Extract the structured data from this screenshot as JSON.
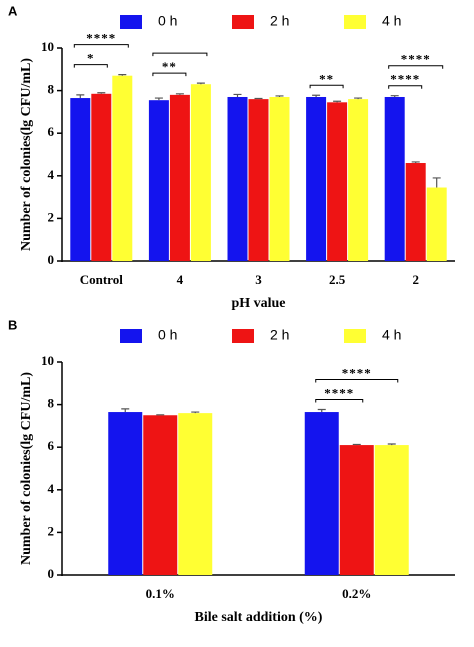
{
  "chart_data": [
    {
      "type": "bar",
      "panel_label": "A",
      "x_label": "pH value",
      "y_label": "Number of colonies(lg CFU/mL)",
      "categories": [
        "Control",
        "4",
        "3",
        "2.5",
        "2"
      ],
      "series": [
        {
          "name": "0 h",
          "color": "#1414ee",
          "values": [
            7.65,
            7.55,
            7.7,
            7.7,
            7.7
          ],
          "errors": [
            0.15,
            0.1,
            0.12,
            0.08,
            0.06
          ]
        },
        {
          "name": "2 h",
          "color": "#ee1414",
          "values": [
            7.85,
            7.8,
            7.6,
            7.45,
            4.6
          ],
          "errors": [
            0.05,
            0.05,
            0.03,
            0.05,
            0.05
          ]
        },
        {
          "name": "4 h",
          "color": "#ffff33",
          "values": [
            8.7,
            8.3,
            7.7,
            7.6,
            3.45
          ],
          "errors": [
            0.05,
            0.05,
            0.05,
            0.05,
            0.45
          ]
        }
      ],
      "ylim": [
        0,
        10
      ],
      "yticks": [
        0,
        2,
        4,
        6,
        8,
        10
      ],
      "annotations": [
        {
          "category": 0,
          "from": 0,
          "to": 1,
          "text": "*"
        },
        {
          "category": 0,
          "from": 0,
          "to": 2,
          "text": "****"
        },
        {
          "category": 1,
          "from": 0,
          "to": 1,
          "text": "**"
        },
        {
          "category": 1,
          "from": 0,
          "to": 2
        },
        {
          "category": 3,
          "from": 0,
          "to": 1,
          "text": "**"
        },
        {
          "category": 4,
          "from": 0,
          "to": 1,
          "text": "****"
        },
        {
          "category": 4,
          "from": 0,
          "to": 2,
          "text": "****"
        }
      ]
    },
    {
      "type": "bar",
      "panel_label": "B",
      "x_label": "Bile salt addition (%)",
      "y_label": "Number of colonies(lg CFU/mL)",
      "categories": [
        "0.1%",
        "0.2%"
      ],
      "series": [
        {
          "name": "0 h",
          "color": "#1414ee",
          "values": [
            7.65,
            7.65
          ],
          "errors": [
            0.15,
            0.12
          ]
        },
        {
          "name": "2 h",
          "color": "#ee1414",
          "values": [
            7.5,
            6.1
          ],
          "errors": [
            0.02,
            0.03
          ]
        },
        {
          "name": "4 h",
          "color": "#ffff33",
          "values": [
            7.6,
            6.1
          ],
          "errors": [
            0.05,
            0.05
          ]
        }
      ],
      "ylim": [
        0,
        10
      ],
      "yticks": [
        0,
        2,
        4,
        6,
        8,
        10
      ],
      "annotations": [
        {
          "category": 1,
          "from": 0,
          "to": 1,
          "text": "****"
        },
        {
          "category": 1,
          "from": 0,
          "to": 2,
          "text": "****"
        }
      ]
    }
  ]
}
